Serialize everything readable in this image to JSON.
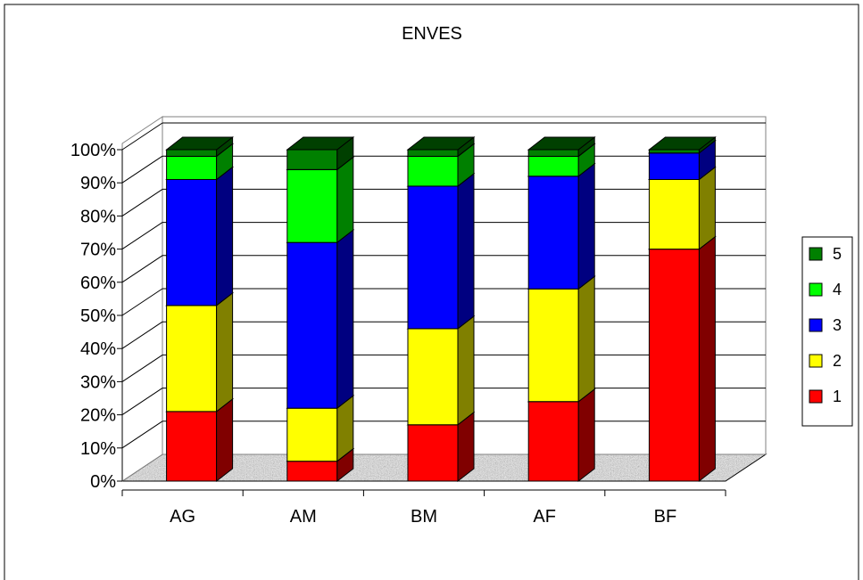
{
  "chart_data": {
    "type": "bar",
    "stacked": true,
    "percent": true,
    "title": "ENVES",
    "xlabel": "",
    "ylabel": "",
    "ylim": [
      0,
      100
    ],
    "yticks": [
      "0%",
      "10%",
      "20%",
      "30%",
      "40%",
      "50%",
      "60%",
      "70%",
      "80%",
      "90%",
      "100%"
    ],
    "categories": [
      "AG",
      "AM",
      "BM",
      "AF",
      "BF"
    ],
    "series": [
      {
        "name": "1",
        "color": "#ff0000",
        "side": "#800000",
        "values": [
          21,
          6,
          17,
          24,
          70
        ]
      },
      {
        "name": "2",
        "color": "#ffff00",
        "side": "#808000",
        "values": [
          32,
          16,
          29,
          34,
          21
        ]
      },
      {
        "name": "3",
        "color": "#0000ff",
        "side": "#000080",
        "values": [
          38,
          50,
          43,
          34,
          8
        ]
      },
      {
        "name": "4",
        "color": "#00ff00",
        "side": "#008000",
        "values": [
          7,
          22,
          9,
          6,
          0
        ]
      },
      {
        "name": "5",
        "color": "#008000",
        "side": "#004000",
        "values": [
          2,
          6,
          2,
          2,
          1
        ]
      }
    ],
    "legend": {
      "position": "right",
      "order": [
        "5",
        "4",
        "3",
        "2",
        "1"
      ]
    },
    "grid": true,
    "floor_pattern": "granite"
  }
}
